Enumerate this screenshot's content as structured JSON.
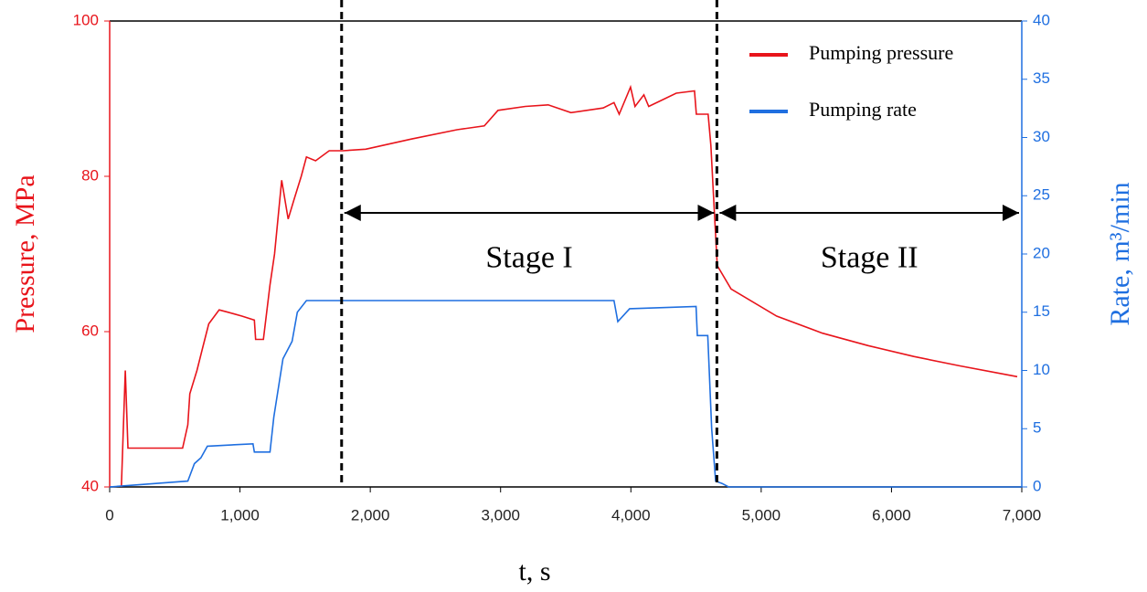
{
  "chart_data": {
    "type": "line",
    "xlabel": "t, s",
    "ylabel": "Pressure, MPa",
    "y2label": "Rate, m³/min",
    "xlim": [
      0,
      7000
    ],
    "xticks": [
      0,
      {
        "value": 1000,
        "label": "1,000"
      },
      {
        "value": 2000,
        "label": "2,000"
      },
      {
        "value": 3000,
        "label": "3,000"
      },
      {
        "value": 4000,
        "label": "4,000"
      },
      {
        "value": 5000,
        "label": "5,000"
      },
      {
        "value": 6000,
        "label": "6,000"
      },
      {
        "value": 7000,
        "label": "7,000"
      }
    ],
    "ylim": [
      40,
      100
    ],
    "yticks": [
      40,
      60,
      80,
      100
    ],
    "y2lim": [
      0,
      40
    ],
    "y2ticks": [
      0,
      5,
      10,
      15,
      20,
      25,
      30,
      35,
      40
    ],
    "legend": "upper right",
    "series": [
      {
        "name": "Pumping pressure",
        "color": "#e8141b",
        "x": [
          90,
          120,
          140,
          560,
          600,
          615,
          670,
          715,
          760,
          840,
          910,
          1015,
          1110,
          1120,
          1180,
          1230,
          1265,
          1320,
          1370,
          1415,
          1470,
          1510,
          1580,
          1685,
          1790,
          1965,
          2315,
          2665,
          2875,
          2980,
          3190,
          3365,
          3540,
          3787,
          3870,
          3910,
          3997,
          4032,
          4100,
          4137,
          4348,
          4488,
          4502,
          4593,
          4614,
          4642,
          4663,
          4769,
          5119,
          5470,
          5820,
          6171,
          6521,
          6872,
          6965
        ],
        "values": [
          40,
          55,
          45,
          45,
          48,
          52,
          55,
          58,
          61,
          62.8,
          62.5,
          62,
          61.5,
          59,
          59,
          66,
          70,
          79.5,
          74.5,
          77,
          80,
          82.5,
          82,
          83.3,
          83.3,
          83.5,
          84.8,
          86,
          86.5,
          88.5,
          89,
          89.2,
          88.2,
          88.8,
          89.5,
          88,
          91.5,
          89,
          90.5,
          89,
          90.7,
          91,
          88,
          88,
          84,
          75,
          68.5,
          65.5,
          62,
          59.8,
          58.2,
          56.8,
          55.6,
          54.5,
          54.2
        ]
      },
      {
        "name": "Pumping rate",
        "color": "#1f6fe0",
        "axis": "y2",
        "x": [
          0,
          600,
          650,
          700,
          750,
          1100,
          1110,
          1230,
          1260,
          1330,
          1400,
          1440,
          1510,
          3870,
          3900,
          3990,
          4500,
          4510,
          4590,
          4620,
          4650,
          4700,
          4750,
          7000
        ],
        "values": [
          0,
          0.5,
          2,
          2.5,
          3.5,
          3.7,
          3,
          3,
          6,
          11,
          12.5,
          15,
          16,
          16,
          14.2,
          15.3,
          15.5,
          13,
          13,
          5,
          0.5,
          0.3,
          0,
          0
        ]
      }
    ],
    "vlines": [
      1780,
      4660
    ],
    "annotations": [
      {
        "text": "Stage I",
        "x": [
          1780,
          4660
        ],
        "y": 75.3
      },
      {
        "text": "Stage II",
        "x": [
          4660,
          7000
        ],
        "y": 75.3
      }
    ]
  }
}
